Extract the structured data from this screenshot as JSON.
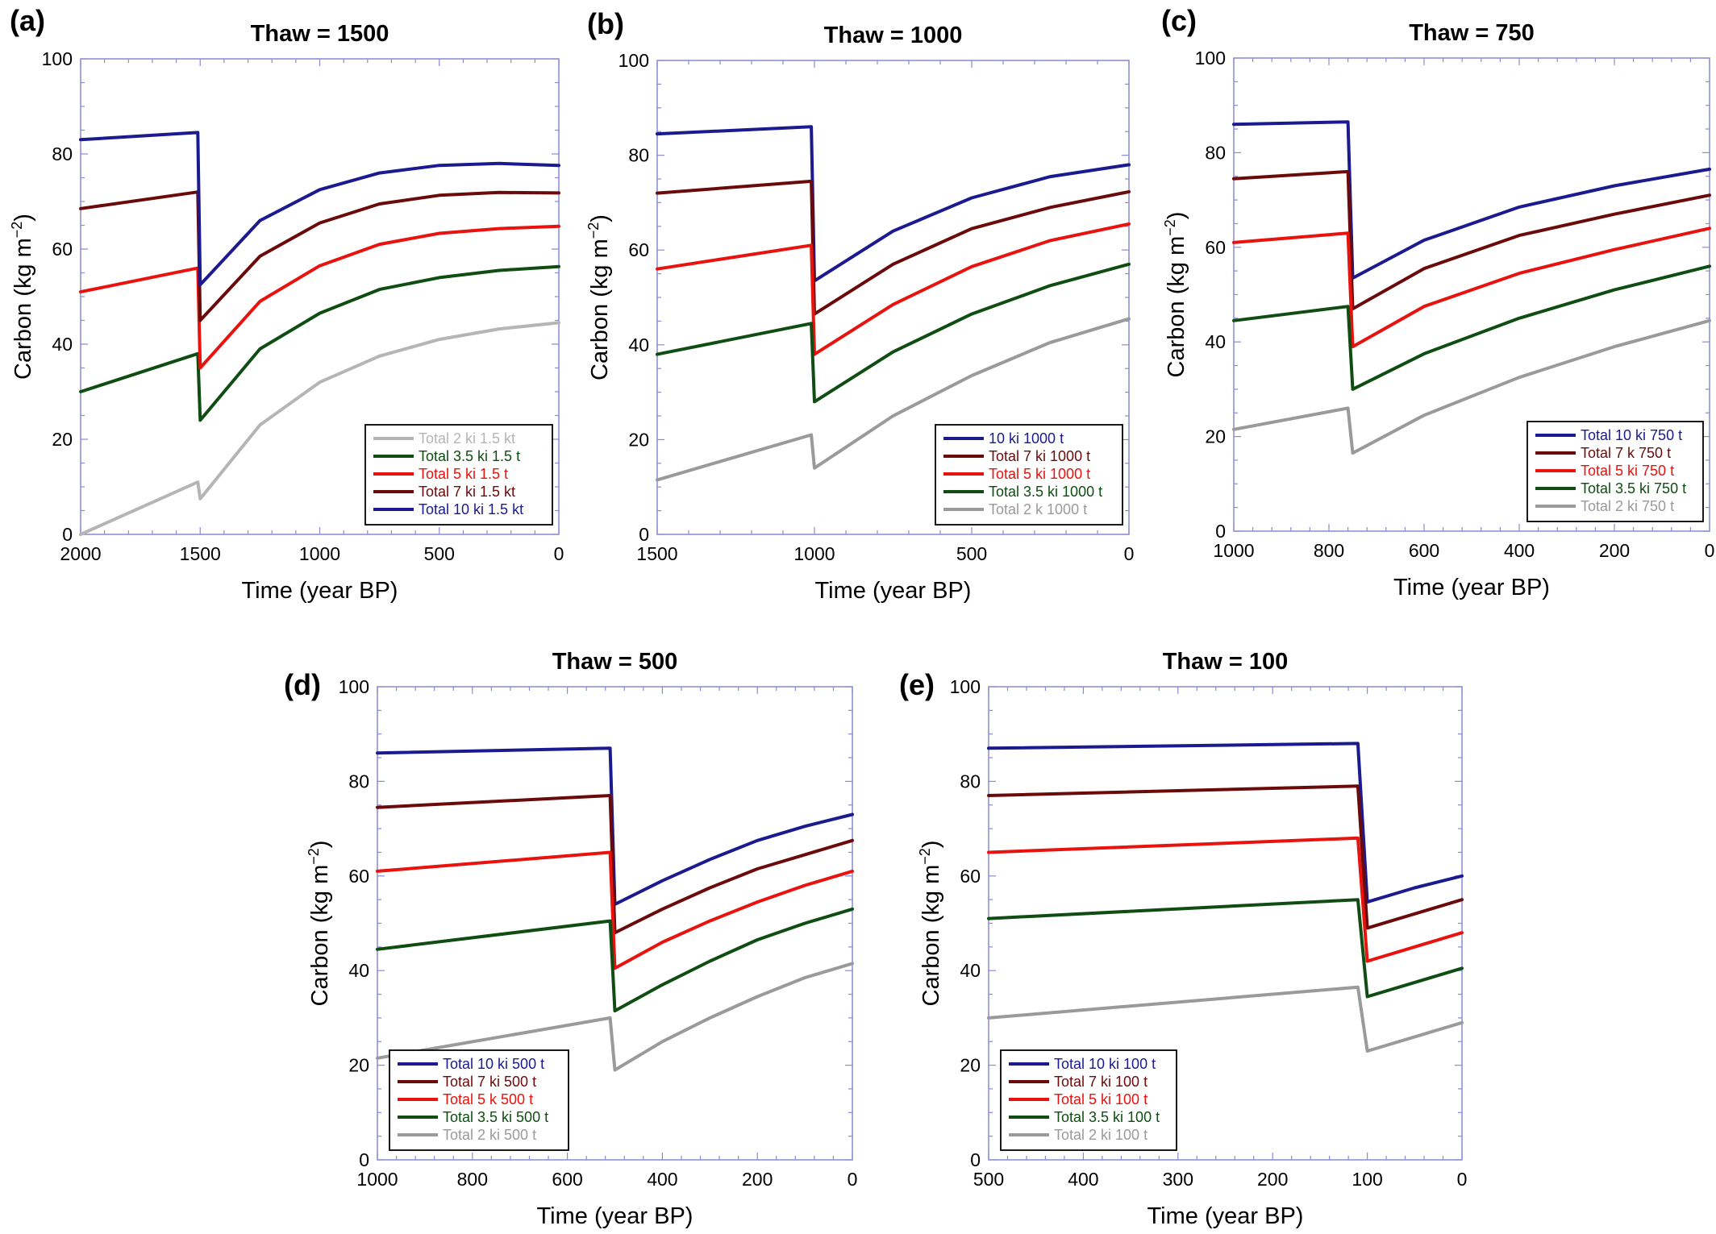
{
  "chart_data": [
    {
      "type": "line",
      "letter": "(a)",
      "title": "Thaw = 1500",
      "xlabel": "Time (year BP)",
      "ylabel": "Carbon (kg m",
      "ylabel_sup": "−2",
      "ylabel_end": ")",
      "xlim": [
        2000,
        0
      ],
      "ylim": [
        0,
        100
      ],
      "xticks": [
        2000,
        1500,
        1000,
        500,
        0
      ],
      "yticks": [
        0,
        20,
        40,
        60,
        80,
        100
      ],
      "legend_position": "bottom-right",
      "series": [
        {
          "name": "Total 2 ki 1.5 kt",
          "color": "#b5b5b5",
          "x": [
            2000,
            1510,
            1500,
            1250,
            1000,
            750,
            500,
            250,
            0
          ],
          "y": [
            0,
            11,
            7.5,
            23,
            32,
            37.5,
            41,
            43.2,
            44.5
          ]
        },
        {
          "name": "Total 3.5 ki 1.5 t",
          "color": "#0f4d12",
          "x": [
            2000,
            1510,
            1500,
            1250,
            1000,
            750,
            500,
            250,
            0
          ],
          "y": [
            30,
            38,
            24,
            39,
            46.5,
            51.5,
            54,
            55.5,
            56.3
          ]
        },
        {
          "name": "Total 5 ki 1.5 t",
          "color": "#e8120e",
          "x": [
            2000,
            1510,
            1500,
            1250,
            1000,
            750,
            500,
            250,
            0
          ],
          "y": [
            51,
            56,
            35,
            49,
            56.5,
            61,
            63.3,
            64.3,
            64.8
          ]
        },
        {
          "name": "Total 7 ki 1.5 kt",
          "color": "#6b0a0a",
          "x": [
            2000,
            1510,
            1500,
            1250,
            1000,
            750,
            500,
            250,
            0
          ],
          "y": [
            68.5,
            72,
            45,
            58.5,
            65.5,
            69.5,
            71.3,
            71.9,
            71.8
          ]
        },
        {
          "name": "Total 10 ki 1.5 kt",
          "color": "#1b1a8f",
          "x": [
            2000,
            1510,
            1500,
            1250,
            1000,
            750,
            500,
            250,
            0
          ],
          "y": [
            83,
            84.5,
            52.5,
            66,
            72.5,
            76,
            77.6,
            78,
            77.6
          ]
        }
      ]
    },
    {
      "type": "line",
      "letter": "(b)",
      "title": "Thaw = 1000",
      "xlabel": "Time (year BP)",
      "ylabel": "Carbon (kg m",
      "ylabel_sup": "−2",
      "ylabel_end": ")",
      "xlim": [
        1500,
        0
      ],
      "ylim": [
        0,
        100
      ],
      "xticks": [
        1500,
        1000,
        500,
        0
      ],
      "yticks": [
        0,
        20,
        40,
        60,
        80,
        100
      ],
      "legend_position": "bottom-right",
      "series": [
        {
          "name": "10 ki 1000 t",
          "color": "#1b1a8f",
          "x": [
            1500,
            1010,
            1000,
            750,
            500,
            250,
            0
          ],
          "y": [
            84.5,
            86,
            53.5,
            64,
            71,
            75.5,
            78
          ]
        },
        {
          "name": "Total 7 ki 1000 t",
          "color": "#6b0a0a",
          "x": [
            1500,
            1010,
            1000,
            750,
            500,
            250,
            0
          ],
          "y": [
            72,
            74.5,
            46.5,
            57,
            64.5,
            69,
            72.3
          ]
        },
        {
          "name": "Total 5 ki 1000 t",
          "color": "#e8120e",
          "x": [
            1500,
            1010,
            1000,
            750,
            500,
            250,
            0
          ],
          "y": [
            56,
            61,
            38,
            48.5,
            56.5,
            62,
            65.5
          ]
        },
        {
          "name": "Total 3.5 ki 1000 t",
          "color": "#0f4d12",
          "x": [
            1500,
            1010,
            1000,
            750,
            500,
            250,
            0
          ],
          "y": [
            38,
            44.5,
            28,
            38.5,
            46.5,
            52.5,
            57
          ]
        },
        {
          "name": "Total 2 k 1000 t",
          "color": "#9a9a9a",
          "x": [
            1500,
            1010,
            1000,
            750,
            500,
            250,
            0
          ],
          "y": [
            11.5,
            21,
            14,
            25,
            33.5,
            40.5,
            45.5
          ]
        }
      ]
    },
    {
      "type": "line",
      "letter": "(c)",
      "title": "Thaw = 750",
      "xlabel": "Time (year BP)",
      "ylabel": "Carbon (kg m",
      "ylabel_sup": "−2",
      "ylabel_end": ")",
      "xlim": [
        1000,
        0
      ],
      "ylim": [
        0,
        100
      ],
      "xticks": [
        1000,
        800,
        600,
        400,
        200,
        0
      ],
      "yticks": [
        0,
        20,
        40,
        60,
        80,
        100
      ],
      "legend_position": "bottom-right",
      "series": [
        {
          "name": "Total 10 ki 750 t",
          "color": "#1b1a8f",
          "x": [
            1000,
            760,
            750,
            600,
            400,
            200,
            0
          ],
          "y": [
            86,
            86.5,
            53.5,
            61.5,
            68.5,
            73,
            76.5
          ]
        },
        {
          "name": "Total 7 k 750 t",
          "color": "#6b0a0a",
          "x": [
            1000,
            760,
            750,
            600,
            400,
            200,
            0
          ],
          "y": [
            74.5,
            76,
            47,
            55.5,
            62.5,
            67,
            71
          ]
        },
        {
          "name": "Total 5 ki 750 t",
          "color": "#e8120e",
          "x": [
            1000,
            760,
            750,
            600,
            400,
            200,
            0
          ],
          "y": [
            61,
            63,
            39,
            47.5,
            54.5,
            59.5,
            64
          ]
        },
        {
          "name": "Total 3.5 ki 750 t",
          "color": "#0f4d12",
          "x": [
            1000,
            760,
            750,
            600,
            400,
            200,
            0
          ],
          "y": [
            44.5,
            47.5,
            30,
            37.5,
            45,
            51,
            56
          ]
        },
        {
          "name": "Total 2 ki 750 t",
          "color": "#9a9a9a",
          "x": [
            1000,
            760,
            750,
            600,
            400,
            200,
            0
          ],
          "y": [
            21.5,
            26,
            16.5,
            24.5,
            32.5,
            39,
            44.5
          ]
        }
      ]
    },
    {
      "type": "line",
      "letter": "(d)",
      "title": "Thaw = 500",
      "xlabel": "Time (year BP)",
      "ylabel": "Carbon (kg m",
      "ylabel_sup": "−2",
      "ylabel_end": ")",
      "xlim": [
        1000,
        0
      ],
      "ylim": [
        0,
        100
      ],
      "xticks": [
        1000,
        800,
        600,
        400,
        200,
        0
      ],
      "yticks": [
        0,
        20,
        40,
        60,
        80,
        100
      ],
      "legend_position": "bottom-left",
      "series": [
        {
          "name": "Total 10 ki 500 t",
          "color": "#1b1a8f",
          "x": [
            1000,
            510,
            500,
            400,
            300,
            200,
            100,
            0
          ],
          "y": [
            86,
            87,
            54,
            59,
            63.5,
            67.5,
            70.5,
            73
          ]
        },
        {
          "name": "Total 7 ki 500 t",
          "color": "#6b0a0a",
          "x": [
            1000,
            510,
            500,
            400,
            300,
            200,
            100,
            0
          ],
          "y": [
            74.5,
            77,
            48,
            53,
            57.5,
            61.5,
            64.5,
            67.5
          ]
        },
        {
          "name": "Total 5 k 500 t",
          "color": "#e8120e",
          "x": [
            1000,
            510,
            500,
            400,
            300,
            200,
            100,
            0
          ],
          "y": [
            61,
            65,
            40.5,
            46,
            50.5,
            54.5,
            58,
            61
          ]
        },
        {
          "name": "Total 3.5 ki 500 t",
          "color": "#0f4d12",
          "x": [
            1000,
            510,
            500,
            400,
            300,
            200,
            100,
            0
          ],
          "y": [
            44.5,
            50.5,
            31.5,
            37,
            42,
            46.5,
            50,
            53
          ]
        },
        {
          "name": "Total 2 ki 500 t",
          "color": "#9a9a9a",
          "x": [
            1000,
            510,
            500,
            400,
            300,
            200,
            100,
            0
          ],
          "y": [
            21.5,
            30,
            19,
            25,
            30,
            34.5,
            38.5,
            41.5
          ]
        }
      ]
    },
    {
      "type": "line",
      "letter": "(e)",
      "title": "Thaw = 100",
      "xlabel": "Time (year BP)",
      "ylabel": "Carbon (kg m",
      "ylabel_sup": "−2",
      "ylabel_end": ")",
      "xlim": [
        500,
        0
      ],
      "ylim": [
        0,
        100
      ],
      "xticks": [
        500,
        400,
        300,
        200,
        100,
        0
      ],
      "yticks": [
        0,
        20,
        40,
        60,
        80,
        100
      ],
      "legend_position": "bottom-left",
      "series": [
        {
          "name": "Total 10 ki 100 t",
          "color": "#1b1a8f",
          "x": [
            500,
            110,
            100,
            50,
            0
          ],
          "y": [
            87,
            88,
            54.5,
            57.5,
            60
          ]
        },
        {
          "name": "Total 7 ki 100 t",
          "color": "#6b0a0a",
          "x": [
            500,
            110,
            100,
            50,
            0
          ],
          "y": [
            77,
            79,
            49,
            52,
            55
          ]
        },
        {
          "name": "Total 5 ki 100 t",
          "color": "#e8120e",
          "x": [
            500,
            110,
            100,
            50,
            0
          ],
          "y": [
            65,
            68,
            42,
            45,
            48
          ]
        },
        {
          "name": "Total 3.5 ki 100 t",
          "color": "#0f4d12",
          "x": [
            500,
            110,
            100,
            50,
            0
          ],
          "y": [
            51,
            55,
            34.5,
            37.5,
            40.5
          ]
        },
        {
          "name": "Total 2 ki 100 t",
          "color": "#9a9a9a",
          "x": [
            500,
            110,
            100,
            50,
            0
          ],
          "y": [
            30,
            36.5,
            23,
            26,
            29
          ]
        }
      ]
    }
  ]
}
